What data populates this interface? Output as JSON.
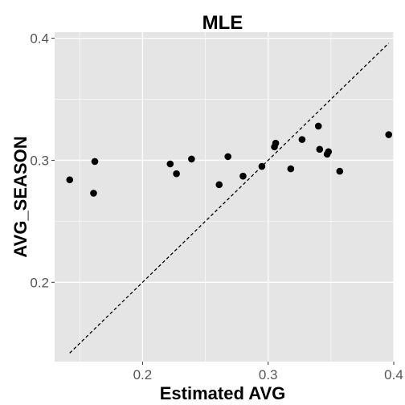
{
  "chart_data": {
    "type": "scatter",
    "title": "MLE",
    "xlabel": "Estimated AVG",
    "ylabel": "AVG_SEASON",
    "xlim": [
      0.13,
      0.4
    ],
    "ylim": [
      0.135,
      0.405
    ],
    "xticks": [
      0.2,
      0.3,
      0.4
    ],
    "yticks": [
      0.2,
      0.3,
      0.4
    ],
    "xtick_labels": [
      "0.2",
      "0.3",
      "0.4"
    ],
    "ytick_labels": [
      "0.2",
      "0.3",
      "0.4"
    ],
    "grid": true,
    "background": "#e5e5e5",
    "grid_color": "#ffffff",
    "point_color": "#000000",
    "reference_line": {
      "type": "identity",
      "style": "dashed",
      "color": "#000000",
      "x_range": [
        0.142,
        0.396
      ]
    },
    "points": [
      {
        "x": 0.142,
        "y": 0.284
      },
      {
        "x": 0.162,
        "y": 0.299
      },
      {
        "x": 0.161,
        "y": 0.273
      },
      {
        "x": 0.222,
        "y": 0.297
      },
      {
        "x": 0.227,
        "y": 0.289
      },
      {
        "x": 0.239,
        "y": 0.301
      },
      {
        "x": 0.261,
        "y": 0.28
      },
      {
        "x": 0.268,
        "y": 0.303
      },
      {
        "x": 0.28,
        "y": 0.287
      },
      {
        "x": 0.295,
        "y": 0.295
      },
      {
        "x": 0.305,
        "y": 0.311
      },
      {
        "x": 0.306,
        "y": 0.314
      },
      {
        "x": 0.318,
        "y": 0.293
      },
      {
        "x": 0.327,
        "y": 0.317
      },
      {
        "x": 0.34,
        "y": 0.328
      },
      {
        "x": 0.341,
        "y": 0.309
      },
      {
        "x": 0.347,
        "y": 0.305
      },
      {
        "x": 0.348,
        "y": 0.307
      },
      {
        "x": 0.357,
        "y": 0.291
      },
      {
        "x": 0.396,
        "y": 0.321
      }
    ]
  }
}
